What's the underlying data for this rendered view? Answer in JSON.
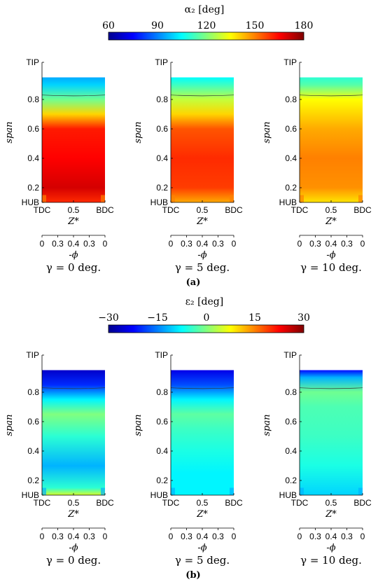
{
  "panels": [
    {
      "label": "(a)",
      "colorbar": {
        "title": "α₂ [deg]",
        "min": 60,
        "max": 180,
        "ticks": [
          "60",
          "90",
          "120",
          "150",
          "180"
        ]
      },
      "charts": [
        {
          "subtitle": "γ = 0 deg."
        },
        {
          "subtitle": "γ = 5 deg."
        },
        {
          "subtitle": "γ = 10 deg."
        }
      ]
    },
    {
      "label": "(b)",
      "colorbar": {
        "title": "ε₂ [deg]",
        "min": -30,
        "max": 30,
        "ticks": [
          "−30",
          "−15",
          "0",
          "15",
          "30"
        ]
      },
      "charts": [
        {
          "subtitle": "γ = 0 deg."
        },
        {
          "subtitle": "γ = 5 deg."
        },
        {
          "subtitle": "γ = 10 deg."
        }
      ]
    }
  ],
  "axes": {
    "ylabel": "span",
    "yticks": [
      "HUB",
      "0.2",
      "0.4",
      "0.6",
      "0.8",
      "TIP"
    ],
    "xticks": [
      "TDC",
      "0.5",
      "BDC"
    ],
    "xlabel": "Z*",
    "phi_ticks": [
      "0",
      "0.3",
      "0.4",
      "0.3",
      "0"
    ],
    "phi_label": "-ϕ"
  },
  "chart_data": [
    {
      "type": "heatmap",
      "panel": "a",
      "subtitle": "γ = 0 deg.",
      "quantity": "α₂ [deg]",
      "xlabel": "Z*",
      "ylabel": "span",
      "x_range": [
        0,
        1
      ],
      "y_range": [
        0.1,
        0.95
      ],
      "stops": [
        [
          0.1,
          160
        ],
        [
          0.2,
          170
        ],
        [
          0.4,
          165
        ],
        [
          0.6,
          162
        ],
        [
          0.7,
          140
        ],
        [
          0.8,
          118
        ],
        [
          0.9,
          100
        ],
        [
          0.95,
          95
        ]
      ]
    },
    {
      "type": "heatmap",
      "panel": "a",
      "subtitle": "γ = 5 deg.",
      "quantity": "α₂ [deg]",
      "xlabel": "Z*",
      "ylabel": "span",
      "x_range": [
        0,
        1
      ],
      "y_range": [
        0.1,
        0.95
      ],
      "stops": [
        [
          0.1,
          145
        ],
        [
          0.2,
          158
        ],
        [
          0.4,
          160
        ],
        [
          0.6,
          155
        ],
        [
          0.7,
          140
        ],
        [
          0.8,
          128
        ],
        [
          0.9,
          112
        ],
        [
          0.95,
          105
        ]
      ]
    },
    {
      "type": "heatmap",
      "panel": "a",
      "subtitle": "γ = 10 deg.",
      "quantity": "α₂ [deg]",
      "xlabel": "Z*",
      "ylabel": "span",
      "x_range": [
        0,
        1
      ],
      "y_range": [
        0.1,
        0.95
      ],
      "stops": [
        [
          0.1,
          138
        ],
        [
          0.2,
          148
        ],
        [
          0.4,
          150
        ],
        [
          0.6,
          145
        ],
        [
          0.7,
          140
        ],
        [
          0.8,
          135
        ],
        [
          0.9,
          115
        ],
        [
          0.95,
          110
        ]
      ]
    },
    {
      "type": "heatmap",
      "panel": "b",
      "subtitle": "γ = 0 deg.",
      "quantity": "ε₂ [deg]",
      "xlabel": "Z*",
      "ylabel": "span",
      "x_range": [
        0,
        1
      ],
      "y_range": [
        0.1,
        0.95
      ],
      "stops": [
        [
          0.1,
          5
        ],
        [
          0.15,
          -5
        ],
        [
          0.3,
          -12
        ],
        [
          0.5,
          -5
        ],
        [
          0.65,
          0
        ],
        [
          0.75,
          -8
        ],
        [
          0.85,
          -20
        ],
        [
          0.95,
          -26
        ]
      ]
    },
    {
      "type": "heatmap",
      "panel": "b",
      "subtitle": "γ = 5 deg.",
      "quantity": "ε₂ [deg]",
      "xlabel": "Z*",
      "ylabel": "span",
      "x_range": [
        0,
        1
      ],
      "y_range": [
        0.1,
        0.95
      ],
      "stops": [
        [
          0.1,
          -8
        ],
        [
          0.25,
          -8
        ],
        [
          0.4,
          -6
        ],
        [
          0.55,
          -4
        ],
        [
          0.65,
          -2
        ],
        [
          0.75,
          -8
        ],
        [
          0.85,
          -18
        ],
        [
          0.95,
          -24
        ]
      ]
    },
    {
      "type": "heatmap",
      "panel": "b",
      "subtitle": "γ = 10 deg.",
      "quantity": "ε₂ [deg]",
      "xlabel": "Z*",
      "ylabel": "span",
      "x_range": [
        0,
        1
      ],
      "y_range": [
        0.1,
        0.95
      ],
      "stops": [
        [
          0.1,
          -10
        ],
        [
          0.3,
          -6
        ],
        [
          0.5,
          -4
        ],
        [
          0.7,
          -3
        ],
        [
          0.8,
          -1
        ],
        [
          0.9,
          -12
        ],
        [
          0.95,
          -22
        ]
      ]
    }
  ]
}
